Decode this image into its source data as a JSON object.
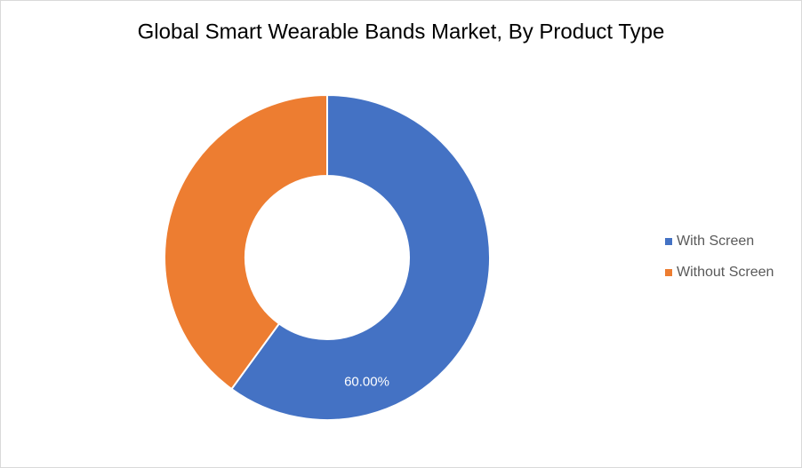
{
  "chart_data": {
    "type": "donut",
    "title": "Global Smart Wearable Bands Market, By Product Type",
    "categories": [
      "With Screen",
      "Without Screen"
    ],
    "values": [
      60,
      40
    ],
    "value_labels": [
      "60.00%",
      null
    ],
    "colors": [
      "#4472c4",
      "#ed7d31"
    ],
    "legend": "right"
  }
}
